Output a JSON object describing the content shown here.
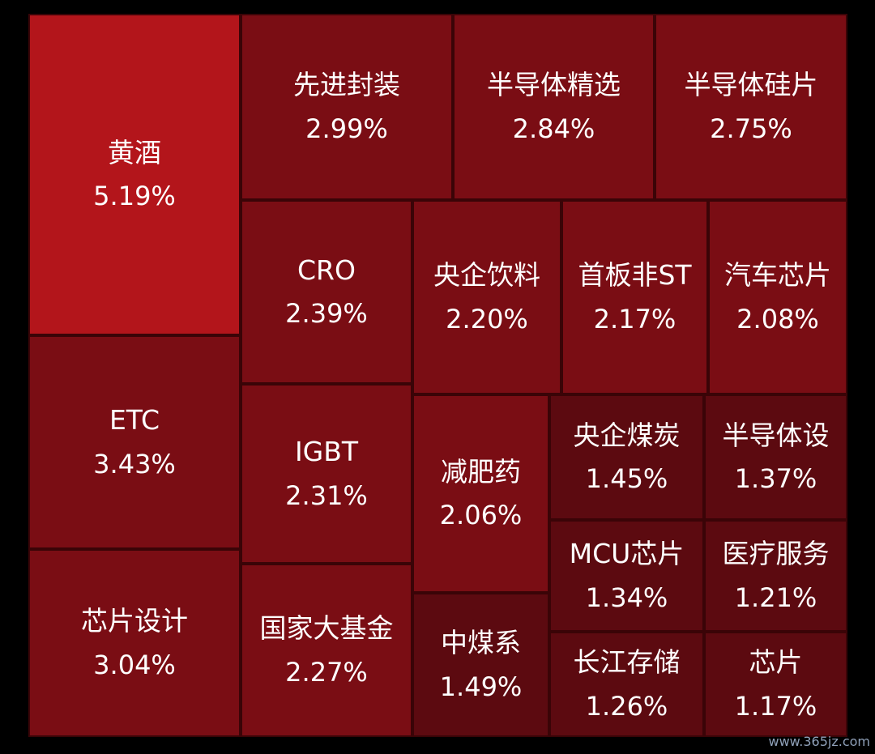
{
  "chart_data": {
    "type": "treemap",
    "value_suffix": "%",
    "colors": {
      "background": "#000000",
      "border": "#3a0407",
      "strong": "#b3151b",
      "medium": "#8a0f16",
      "base": "#7a0d14",
      "weak": "#5c0a10"
    },
    "items": [
      {
        "name": "黄酒",
        "value": 5.19,
        "label": "5.19%"
      },
      {
        "name": "ETC",
        "value": 3.43,
        "label": "3.43%"
      },
      {
        "name": "芯片设计",
        "value": 3.04,
        "label": "3.04%"
      },
      {
        "name": "先进封装",
        "value": 2.99,
        "label": "2.99%"
      },
      {
        "name": "半导体精选",
        "value": 2.84,
        "label": "2.84%"
      },
      {
        "name": "半导体硅片",
        "value": 2.75,
        "label": "2.75%"
      },
      {
        "name": "CRO",
        "value": 2.39,
        "label": "2.39%"
      },
      {
        "name": "央企饮料",
        "value": 2.2,
        "label": "2.20%"
      },
      {
        "name": "首板非ST",
        "value": 2.17,
        "label": "2.17%"
      },
      {
        "name": "汽车芯片",
        "value": 2.08,
        "label": "2.08%"
      },
      {
        "name": "IGBT",
        "value": 2.31,
        "label": "2.31%"
      },
      {
        "name": "减肥药",
        "value": 2.06,
        "label": "2.06%"
      },
      {
        "name": "央企煤炭",
        "value": 1.45,
        "label": "1.45%"
      },
      {
        "name": "半导体设",
        "value": 1.37,
        "label": "1.37%"
      },
      {
        "name": "MCU芯片",
        "value": 1.34,
        "label": "1.34%"
      },
      {
        "name": "医疗服务",
        "value": 1.21,
        "label": "1.21%"
      },
      {
        "name": "国家大基金",
        "value": 2.27,
        "label": "2.27%"
      },
      {
        "name": "中煤系",
        "value": 1.49,
        "label": "1.49%"
      },
      {
        "name": "长江存储",
        "value": 1.26,
        "label": "1.26%"
      },
      {
        "name": "芯片",
        "value": 1.17,
        "label": "1.17%"
      }
    ]
  },
  "watermark": "www.365jz.com"
}
